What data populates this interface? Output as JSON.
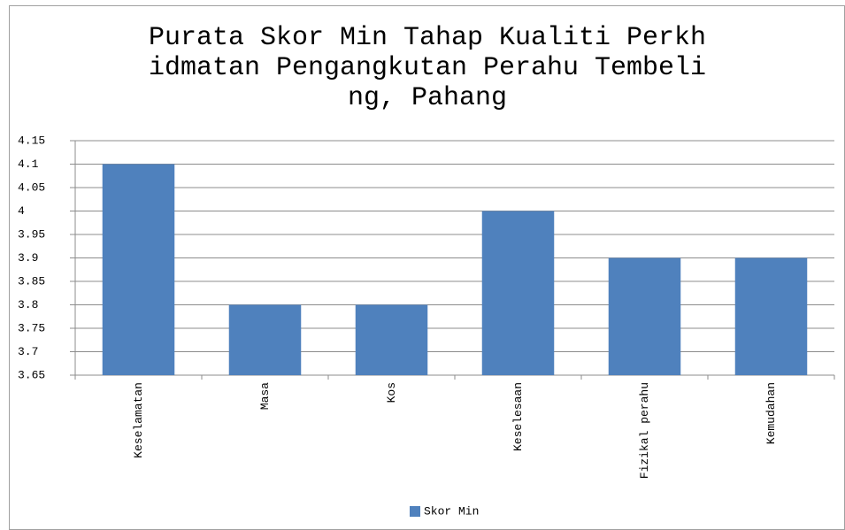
{
  "chart_data": {
    "type": "bar",
    "title": "Purata Skor Min Tahap Kualiti Perkhidmatan Pengangkutan Perahu Tembeling, Pahang",
    "categories": [
      "Keselamatan",
      "Masa",
      "Kos",
      "Keselesaan",
      "Fizikal perahu",
      "Kemudahan"
    ],
    "series": [
      {
        "name": "Skor Min",
        "color": "#4f81bd",
        "values": [
          4.1,
          3.8,
          3.8,
          4.0,
          3.9,
          3.9
        ]
      }
    ],
    "ylim": [
      3.65,
      4.15
    ],
    "yticks": [
      3.65,
      3.7,
      3.75,
      3.8,
      3.85,
      3.9,
      3.95,
      4,
      4.05,
      4.1,
      4.15
    ],
    "grid": true,
    "legend": "bottom"
  }
}
